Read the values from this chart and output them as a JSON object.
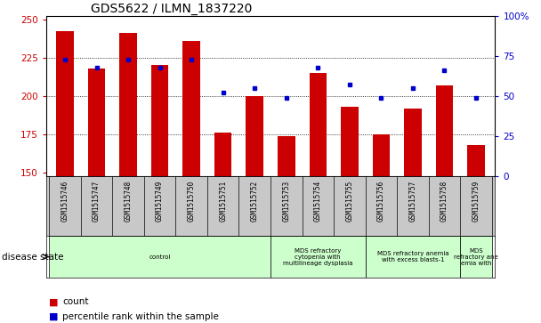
{
  "title": "GDS5622 / ILMN_1837220",
  "samples": [
    "GSM1515746",
    "GSM1515747",
    "GSM1515748",
    "GSM1515749",
    "GSM1515750",
    "GSM1515751",
    "GSM1515752",
    "GSM1515753",
    "GSM1515754",
    "GSM1515755",
    "GSM1515756",
    "GSM1515757",
    "GSM1515758",
    "GSM1515759"
  ],
  "counts": [
    242,
    218,
    241,
    220,
    236,
    176,
    200,
    174,
    215,
    193,
    175,
    192,
    207,
    168
  ],
  "percentile_ranks": [
    73,
    68,
    73,
    68,
    73,
    52,
    55,
    49,
    68,
    57,
    49,
    55,
    66,
    49
  ],
  "ylim_left": [
    148,
    252
  ],
  "ylim_right": [
    0,
    100
  ],
  "yticks_left": [
    150,
    175,
    200,
    225,
    250
  ],
  "yticks_right": [
    0,
    25,
    50,
    75,
    100
  ],
  "bar_color": "#cc0000",
  "dot_color": "#0000cc",
  "disease_groups_starts": [
    0,
    7,
    10,
    13
  ],
  "disease_groups_ends": [
    7,
    10,
    13,
    14
  ],
  "disease_groups_labels": [
    "control",
    "MDS refractory\ncytopenia with\nmultilineage dysplasia",
    "MDS refractory anemia\nwith excess blasts-1",
    "MDS\nrefractory ane\nemia with"
  ],
  "disease_state_label": "disease state",
  "legend_count_label": "count",
  "legend_percentile_label": "percentile rank within the sample",
  "bg_color": "#ffffff",
  "tick_bg_color": "#c8c8c8",
  "disease_bg_color": "#ccffcc"
}
